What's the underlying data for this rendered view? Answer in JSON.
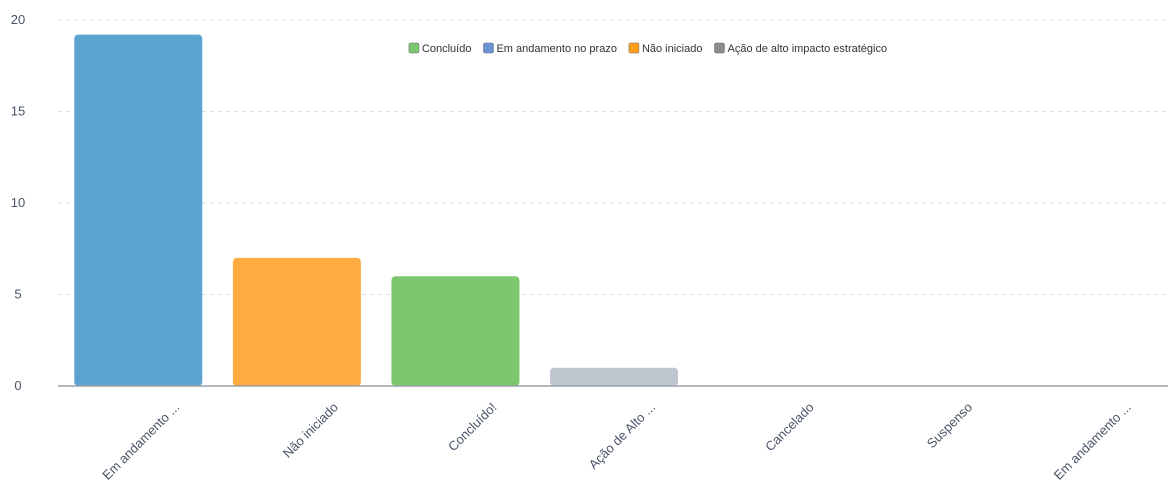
{
  "chart_data": {
    "type": "bar",
    "categories": [
      "Em andamento ...",
      "Não iniciado",
      "Concluído!",
      "Ação de Alto ...",
      "Cancelado",
      "Suspenso",
      "Em andamento ..."
    ],
    "values": [
      19.2,
      7,
      6,
      1,
      0,
      0,
      0
    ],
    "bar_colors": [
      "#5ba4d0",
      "#ffab40",
      "#7dc76e",
      "#c0c6d0",
      "#c0c6d0",
      "#c0c6d0",
      "#c0c6d0"
    ],
    "ylim": [
      0,
      20
    ],
    "yticks": [
      0,
      5,
      10,
      15,
      20
    ],
    "grid": true,
    "legend": {
      "placement": "top-center",
      "items": [
        {
          "label": "Concluído",
          "color": "#7dc76e"
        },
        {
          "label": "Em andamento no prazo",
          "color": "#6b93d6"
        },
        {
          "label": "Não iniciado",
          "color": "#ff9f1c"
        },
        {
          "label": "Ação de alto impacto estratégico",
          "color": "#8c8c8c"
        }
      ]
    }
  }
}
